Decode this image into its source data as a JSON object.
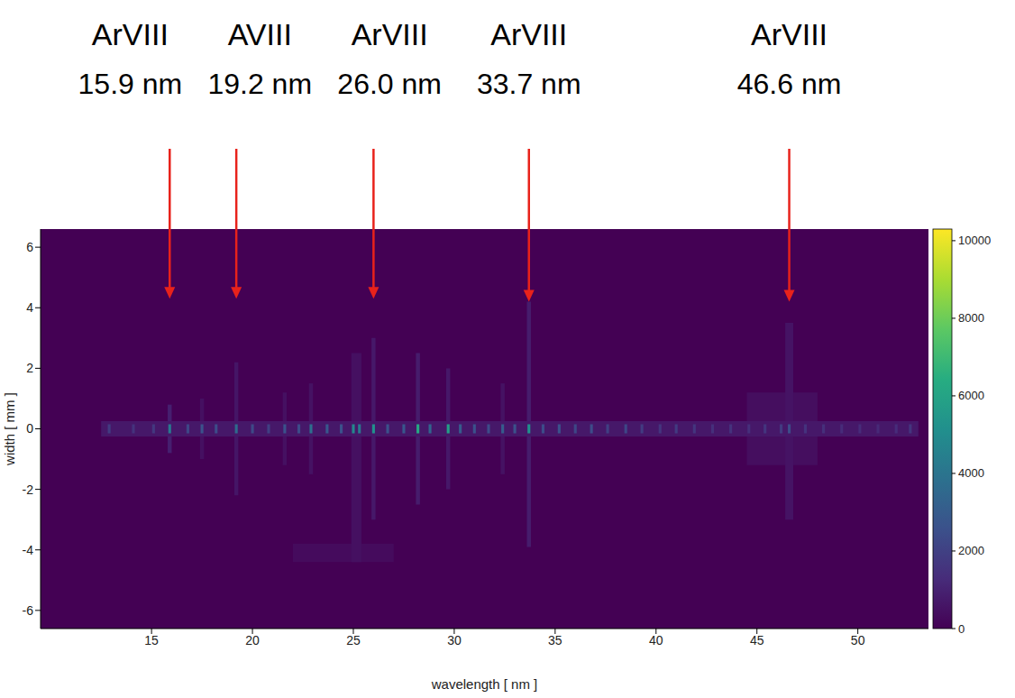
{
  "chart_data": {
    "type": "heatmap",
    "x_label": "wavelength [ nm ]",
    "y_label": "width [ mm ]",
    "xlim": [
      9.5,
      53.5
    ],
    "xticks": [
      15,
      20,
      25,
      30,
      35,
      40,
      45,
      50
    ],
    "ylim": [
      -6.6,
      6.6
    ],
    "yticks": [
      -6,
      -4,
      -2,
      0,
      2,
      4,
      6
    ],
    "grid": false,
    "colorbar": {
      "range": [
        0,
        10300
      ],
      "ticks": [
        0,
        2000,
        4000,
        6000,
        8000,
        10000
      ]
    },
    "annotations": [
      {
        "label": "ArVIII",
        "sublabel": "15.9 nm",
        "x": 15.9,
        "y": 4.3
      },
      {
        "label": "AVIII",
        "sublabel": "19.2 nm",
        "x": 19.2,
        "y": 4.3
      },
      {
        "label": "ArVIII",
        "sublabel": "26.0 nm",
        "x": 26.0,
        "y": 4.3
      },
      {
        "label": "ArVIII",
        "sublabel": "33.7 nm",
        "x": 33.7,
        "y": 4.2
      },
      {
        "label": "ArVIII",
        "sublabel": "46.6 nm",
        "x": 46.6,
        "y": 4.2
      }
    ],
    "cells": [
      [
        22.0,
        27.0,
        -4.4,
        -3.8,
        300
      ],
      [
        44.5,
        48.0,
        -1.2,
        1.2,
        380
      ],
      [
        15.8,
        16.0,
        -0.8,
        0.8,
        900
      ],
      [
        17.4,
        17.6,
        -1.0,
        1.0,
        450
      ],
      [
        19.1,
        19.3,
        -2.2,
        2.2,
        600
      ],
      [
        21.5,
        21.7,
        -1.2,
        1.2,
        450
      ],
      [
        22.8,
        23.0,
        -1.5,
        1.5,
        500
      ],
      [
        24.9,
        25.4,
        -4.4,
        2.5,
        450
      ],
      [
        25.9,
        26.1,
        -3.0,
        3.0,
        700
      ],
      [
        28.1,
        28.3,
        -2.5,
        2.5,
        800
      ],
      [
        29.6,
        29.8,
        -2.0,
        2.0,
        700
      ],
      [
        32.3,
        32.5,
        -1.5,
        1.5,
        500
      ],
      [
        33.6,
        33.8,
        -3.9,
        4.2,
        800
      ],
      [
        46.4,
        46.8,
        -3.0,
        3.5,
        550
      ],
      [
        12.5,
        53.0,
        -0.25,
        0.25,
        700
      ],
      [
        12.83,
        12.97,
        -0.15,
        0.15,
        1800
      ],
      [
        14.03,
        14.17,
        -0.15,
        0.15,
        1500
      ],
      [
        15.03,
        15.17,
        -0.15,
        0.15,
        1700
      ],
      [
        15.83,
        15.97,
        -0.15,
        0.15,
        4200
      ],
      [
        16.73,
        16.87,
        -0.15,
        0.15,
        2200
      ],
      [
        17.43,
        17.57,
        -0.15,
        0.15,
        2600
      ],
      [
        18.13,
        18.27,
        -0.15,
        0.15,
        2400
      ],
      [
        19.13,
        19.27,
        -0.15,
        0.15,
        3600
      ],
      [
        19.93,
        20.07,
        -0.15,
        0.15,
        2300
      ],
      [
        20.73,
        20.87,
        -0.15,
        0.15,
        2000
      ],
      [
        21.53,
        21.67,
        -0.15,
        0.15,
        2600
      ],
      [
        22.23,
        22.37,
        -0.15,
        0.15,
        2400
      ],
      [
        22.83,
        22.97,
        -0.15,
        0.15,
        3800
      ],
      [
        23.63,
        23.77,
        -0.15,
        0.15,
        2800
      ],
      [
        24.33,
        24.47,
        -0.15,
        0.15,
        2600
      ],
      [
        24.93,
        25.07,
        -0.15,
        0.15,
        4800
      ],
      [
        25.23,
        25.37,
        -0.15,
        0.15,
        4200
      ],
      [
        25.93,
        26.07,
        -0.15,
        0.15,
        5200
      ],
      [
        26.63,
        26.77,
        -0.15,
        0.15,
        2600
      ],
      [
        27.43,
        27.57,
        -0.15,
        0.15,
        2800
      ],
      [
        28.13,
        28.27,
        -0.15,
        0.15,
        6200
      ],
      [
        28.73,
        28.87,
        -0.15,
        0.15,
        3400
      ],
      [
        29.63,
        29.77,
        -0.15,
        0.15,
        5800
      ],
      [
        30.23,
        30.37,
        -0.15,
        0.15,
        3000
      ],
      [
        30.93,
        31.07,
        -0.15,
        0.15,
        2600
      ],
      [
        31.63,
        31.77,
        -0.15,
        0.15,
        2400
      ],
      [
        32.33,
        32.47,
        -0.15,
        0.15,
        3000
      ],
      [
        32.93,
        33.07,
        -0.15,
        0.15,
        2600
      ],
      [
        33.63,
        33.77,
        -0.15,
        0.15,
        5200
      ],
      [
        34.33,
        34.47,
        -0.15,
        0.15,
        2400
      ],
      [
        35.13,
        35.27,
        -0.15,
        0.15,
        2600
      ],
      [
        35.93,
        36.07,
        -0.15,
        0.15,
        2200
      ],
      [
        36.73,
        36.87,
        -0.15,
        0.15,
        2400
      ],
      [
        37.53,
        37.67,
        -0.15,
        0.15,
        2000
      ],
      [
        38.43,
        38.57,
        -0.15,
        0.15,
        2200
      ],
      [
        39.23,
        39.37,
        -0.15,
        0.15,
        1800
      ],
      [
        40.13,
        40.27,
        -0.15,
        0.15,
        1600
      ],
      [
        40.93,
        41.07,
        -0.15,
        0.15,
        1800
      ],
      [
        41.83,
        41.97,
        -0.15,
        0.15,
        1600
      ],
      [
        42.73,
        42.87,
        -0.15,
        0.15,
        1400
      ],
      [
        43.63,
        43.77,
        -0.15,
        0.15,
        1500
      ],
      [
        44.53,
        44.67,
        -0.15,
        0.15,
        1400
      ],
      [
        45.33,
        45.47,
        -0.15,
        0.15,
        1600
      ],
      [
        46.13,
        46.27,
        -0.15,
        0.15,
        1800
      ],
      [
        46.53,
        46.67,
        -0.15,
        0.15,
        2400
      ],
      [
        47.33,
        47.47,
        -0.15,
        0.15,
        1500
      ],
      [
        48.23,
        48.37,
        -0.15,
        0.15,
        1400
      ],
      [
        49.13,
        49.27,
        -0.15,
        0.15,
        1300
      ],
      [
        50.03,
        50.17,
        -0.15,
        0.15,
        1300
      ],
      [
        50.93,
        51.07,
        -0.15,
        0.15,
        1200
      ],
      [
        51.83,
        51.97,
        -0.15,
        0.15,
        1300
      ],
      [
        52.53,
        52.67,
        -0.15,
        0.15,
        1600
      ]
    ]
  }
}
